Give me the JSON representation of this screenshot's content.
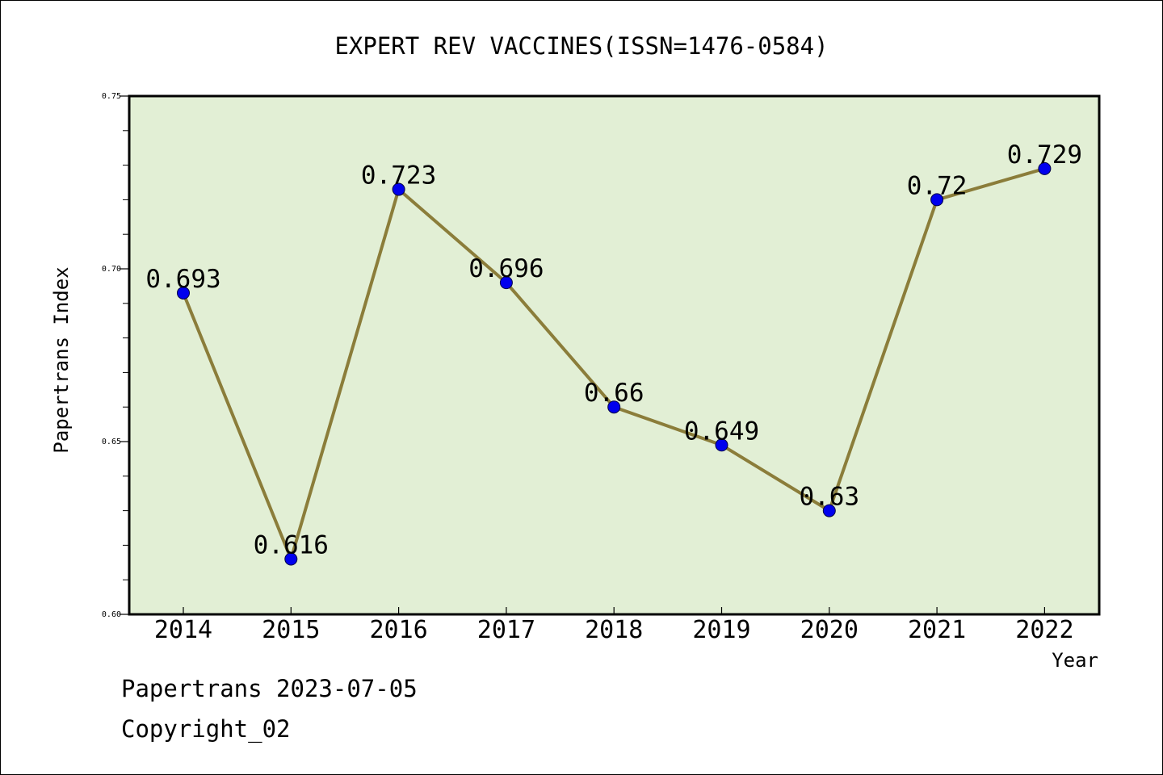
{
  "footer": {
    "line1": "Papertrans 2023-07-05",
    "line2": "Copyright_02"
  },
  "colors": {
    "plot_background": "#e2efd5",
    "line": "#8b7d3a",
    "marker": "#0000ee",
    "axis": "#000000"
  },
  "chart_data": {
    "type": "line",
    "title": "EXPERT REV VACCINES(ISSN=1476-0584)",
    "xlabel": "Year",
    "ylabel": "Papertrans Index",
    "categories": [
      "2014",
      "2015",
      "2016",
      "2017",
      "2018",
      "2019",
      "2020",
      "2021",
      "2022"
    ],
    "series": [
      {
        "values": [
          0.693,
          0.616,
          0.723,
          0.696,
          0.66,
          0.649,
          0.63,
          0.72,
          0.729
        ],
        "labels": [
          "0.693",
          "0.616",
          "0.723",
          "0.696",
          "0.66",
          "0.649",
          "0.63",
          "0.72",
          "0.729"
        ]
      }
    ],
    "ylim": [
      0.6,
      0.75
    ],
    "yticks": [
      "0.60",
      "0.65",
      "0.70",
      "0.75"
    ],
    "ytick_values": [
      0.6,
      0.65,
      0.7,
      0.75
    ],
    "grid": false,
    "legend": "none"
  }
}
